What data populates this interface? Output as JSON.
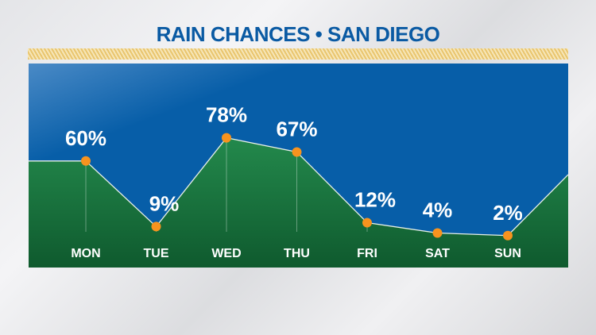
{
  "title": "RAIN CHANCES • SAN DIEGO",
  "colors": {
    "sky": "#075ea8",
    "fill": "#1c7a44",
    "point": "#f7931e",
    "title": "#0a5aa3"
  },
  "chart_data": {
    "type": "area",
    "categories": [
      "MON",
      "TUE",
      "WED",
      "THU",
      "FRI",
      "SAT",
      "SUN"
    ],
    "values": [
      60,
      9,
      78,
      67,
      12,
      4,
      2
    ],
    "data_labels": [
      "60%",
      "9%",
      "78%",
      "67%",
      "12%",
      "4%",
      "2%"
    ],
    "ylabel": "",
    "xlabel": "",
    "ylim": [
      0,
      100
    ],
    "grid": false,
    "legend": "none"
  }
}
